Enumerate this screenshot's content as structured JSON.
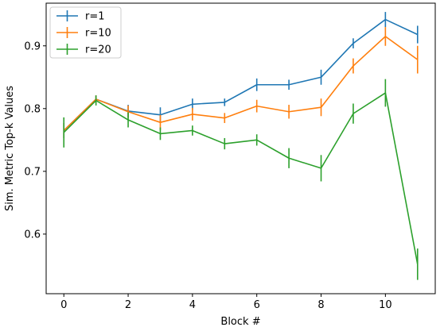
{
  "chart_data": {
    "type": "line",
    "xlabel": "Block #",
    "ylabel": "Sim. Metric Top-k Values",
    "xlim": [
      -0.55,
      11.55
    ],
    "ylim": [
      0.505,
      0.968
    ],
    "xticks": [
      0,
      2,
      4,
      6,
      8,
      10
    ],
    "yticks": [
      0.6,
      0.7,
      0.8,
      0.9
    ],
    "ytick_labels": [
      "0.6",
      "0.7",
      "0.8",
      "0.9"
    ],
    "grid": false,
    "legend_position": "top-left",
    "x": [
      0,
      1,
      2,
      3,
      4,
      5,
      6,
      7,
      8,
      9,
      10,
      11
    ],
    "series": [
      {
        "name": "r=1",
        "color": "#1f77b4",
        "values": [
          0.765,
          0.815,
          0.796,
          0.79,
          0.807,
          0.81,
          0.838,
          0.838,
          0.85,
          0.904,
          0.942,
          0.918
        ],
        "errors": [
          0.012,
          0.006,
          0.01,
          0.012,
          0.009,
          0.006,
          0.01,
          0.008,
          0.012,
          0.008,
          0.012,
          0.014
        ]
      },
      {
        "name": "r=10",
        "color": "#ff7f0e",
        "values": [
          0.765,
          0.815,
          0.795,
          0.778,
          0.791,
          0.785,
          0.804,
          0.795,
          0.802,
          0.868,
          0.915,
          0.878
        ],
        "errors": [
          0.012,
          0.006,
          0.01,
          0.012,
          0.01,
          0.008,
          0.01,
          0.011,
          0.014,
          0.012,
          0.015,
          0.022
        ]
      },
      {
        "name": "r=20",
        "color": "#2ca02c",
        "values": [
          0.762,
          0.813,
          0.782,
          0.76,
          0.765,
          0.744,
          0.75,
          0.721,
          0.705,
          0.792,
          0.825,
          0.552
        ],
        "errors": [
          0.024,
          0.008,
          0.012,
          0.01,
          0.008,
          0.009,
          0.009,
          0.016,
          0.021,
          0.016,
          0.022,
          0.025
        ]
      }
    ]
  }
}
